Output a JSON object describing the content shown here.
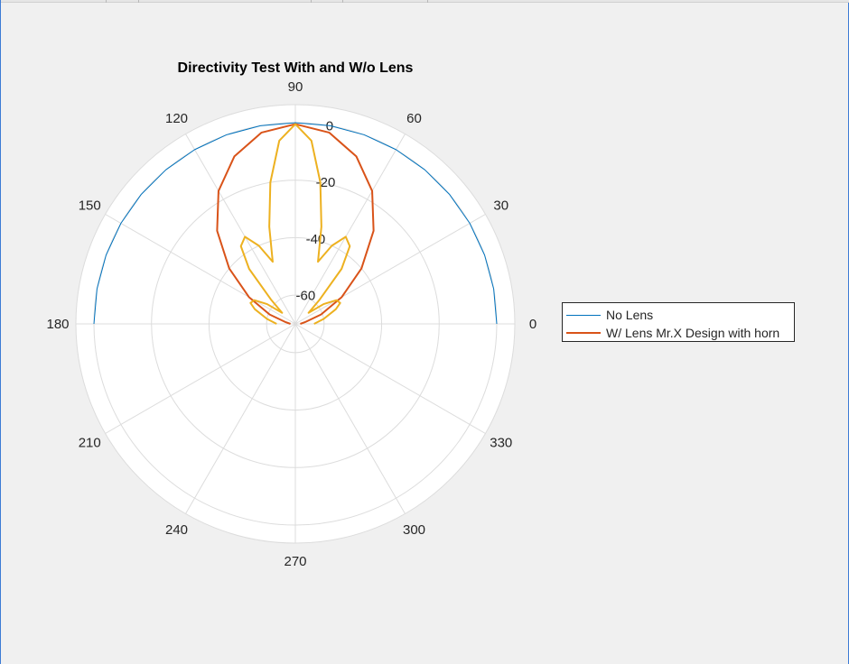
{
  "chart_data": {
    "type": "polar-line",
    "title": "Directivity Test With and W/o Lens",
    "theta_ticks": [
      "0",
      "30",
      "60",
      "90",
      "120",
      "150",
      "180",
      "210",
      "240",
      "270",
      "300",
      "330"
    ],
    "r_ticks": [
      "-60",
      "-40",
      "-20",
      "0"
    ],
    "r_tick_values": [
      -60,
      -40,
      -20,
      0
    ],
    "rlim": [
      -70,
      0
    ],
    "theta_unit": "degrees",
    "grid": true,
    "legend_placement": "east-outside",
    "series": [
      {
        "name": "No Lens",
        "color": "#0072bd",
        "theta": [
          0,
          10,
          20,
          30,
          40,
          50,
          60,
          70,
          80,
          90,
          100,
          110,
          120,
          130,
          140,
          150,
          160,
          170,
          180
        ],
        "r": [
          0,
          0,
          0,
          0,
          0,
          0,
          0,
          0,
          0,
          0,
          0,
          0,
          0,
          0,
          0,
          0,
          0,
          0,
          0
        ]
      },
      {
        "name": "W/ Lens Mr.X Design with horn",
        "color": "#d95319",
        "theta": [
          0,
          10,
          20,
          30,
          40,
          50,
          60,
          70,
          80,
          90,
          100,
          110,
          120,
          130,
          140,
          150,
          160,
          170,
          180
        ],
        "r": [
          -68.3,
          -66.6,
          -60.5,
          -51.4,
          -40.0,
          -27.7,
          -16.6,
          -8.0,
          -2.4,
          -0.5,
          -2.4,
          -8.0,
          -16.6,
          -27.7,
          -40.0,
          -51.4,
          -60.5,
          -66.6,
          -68.3
        ]
      },
      {
        "name": "",
        "color": "#edb120",
        "theta": [
          0,
          10,
          20,
          25,
          30,
          35,
          40,
          45,
          50,
          55,
          60,
          65,
          70,
          75,
          80,
          85,
          90,
          95,
          100,
          105,
          110,
          115,
          120,
          125,
          130,
          135,
          140,
          145,
          150,
          155,
          160,
          170,
          180
        ],
        "r": [
          -63.5,
          -60.0,
          -55.0,
          -52.8,
          -53.5,
          -58.0,
          -64.0,
          -58.0,
          -45.0,
          -37.0,
          -35.0,
          -40.0,
          -47.0,
          -35.0,
          -20.0,
          -6.0,
          -0.5,
          -6.0,
          -20.0,
          -35.0,
          -47.0,
          -40.0,
          -35.0,
          -37.0,
          -45.0,
          -58.0,
          -64.0,
          -58.0,
          -53.5,
          -52.8,
          -55.0,
          -60.0,
          -63.5
        ]
      }
    ]
  }
}
